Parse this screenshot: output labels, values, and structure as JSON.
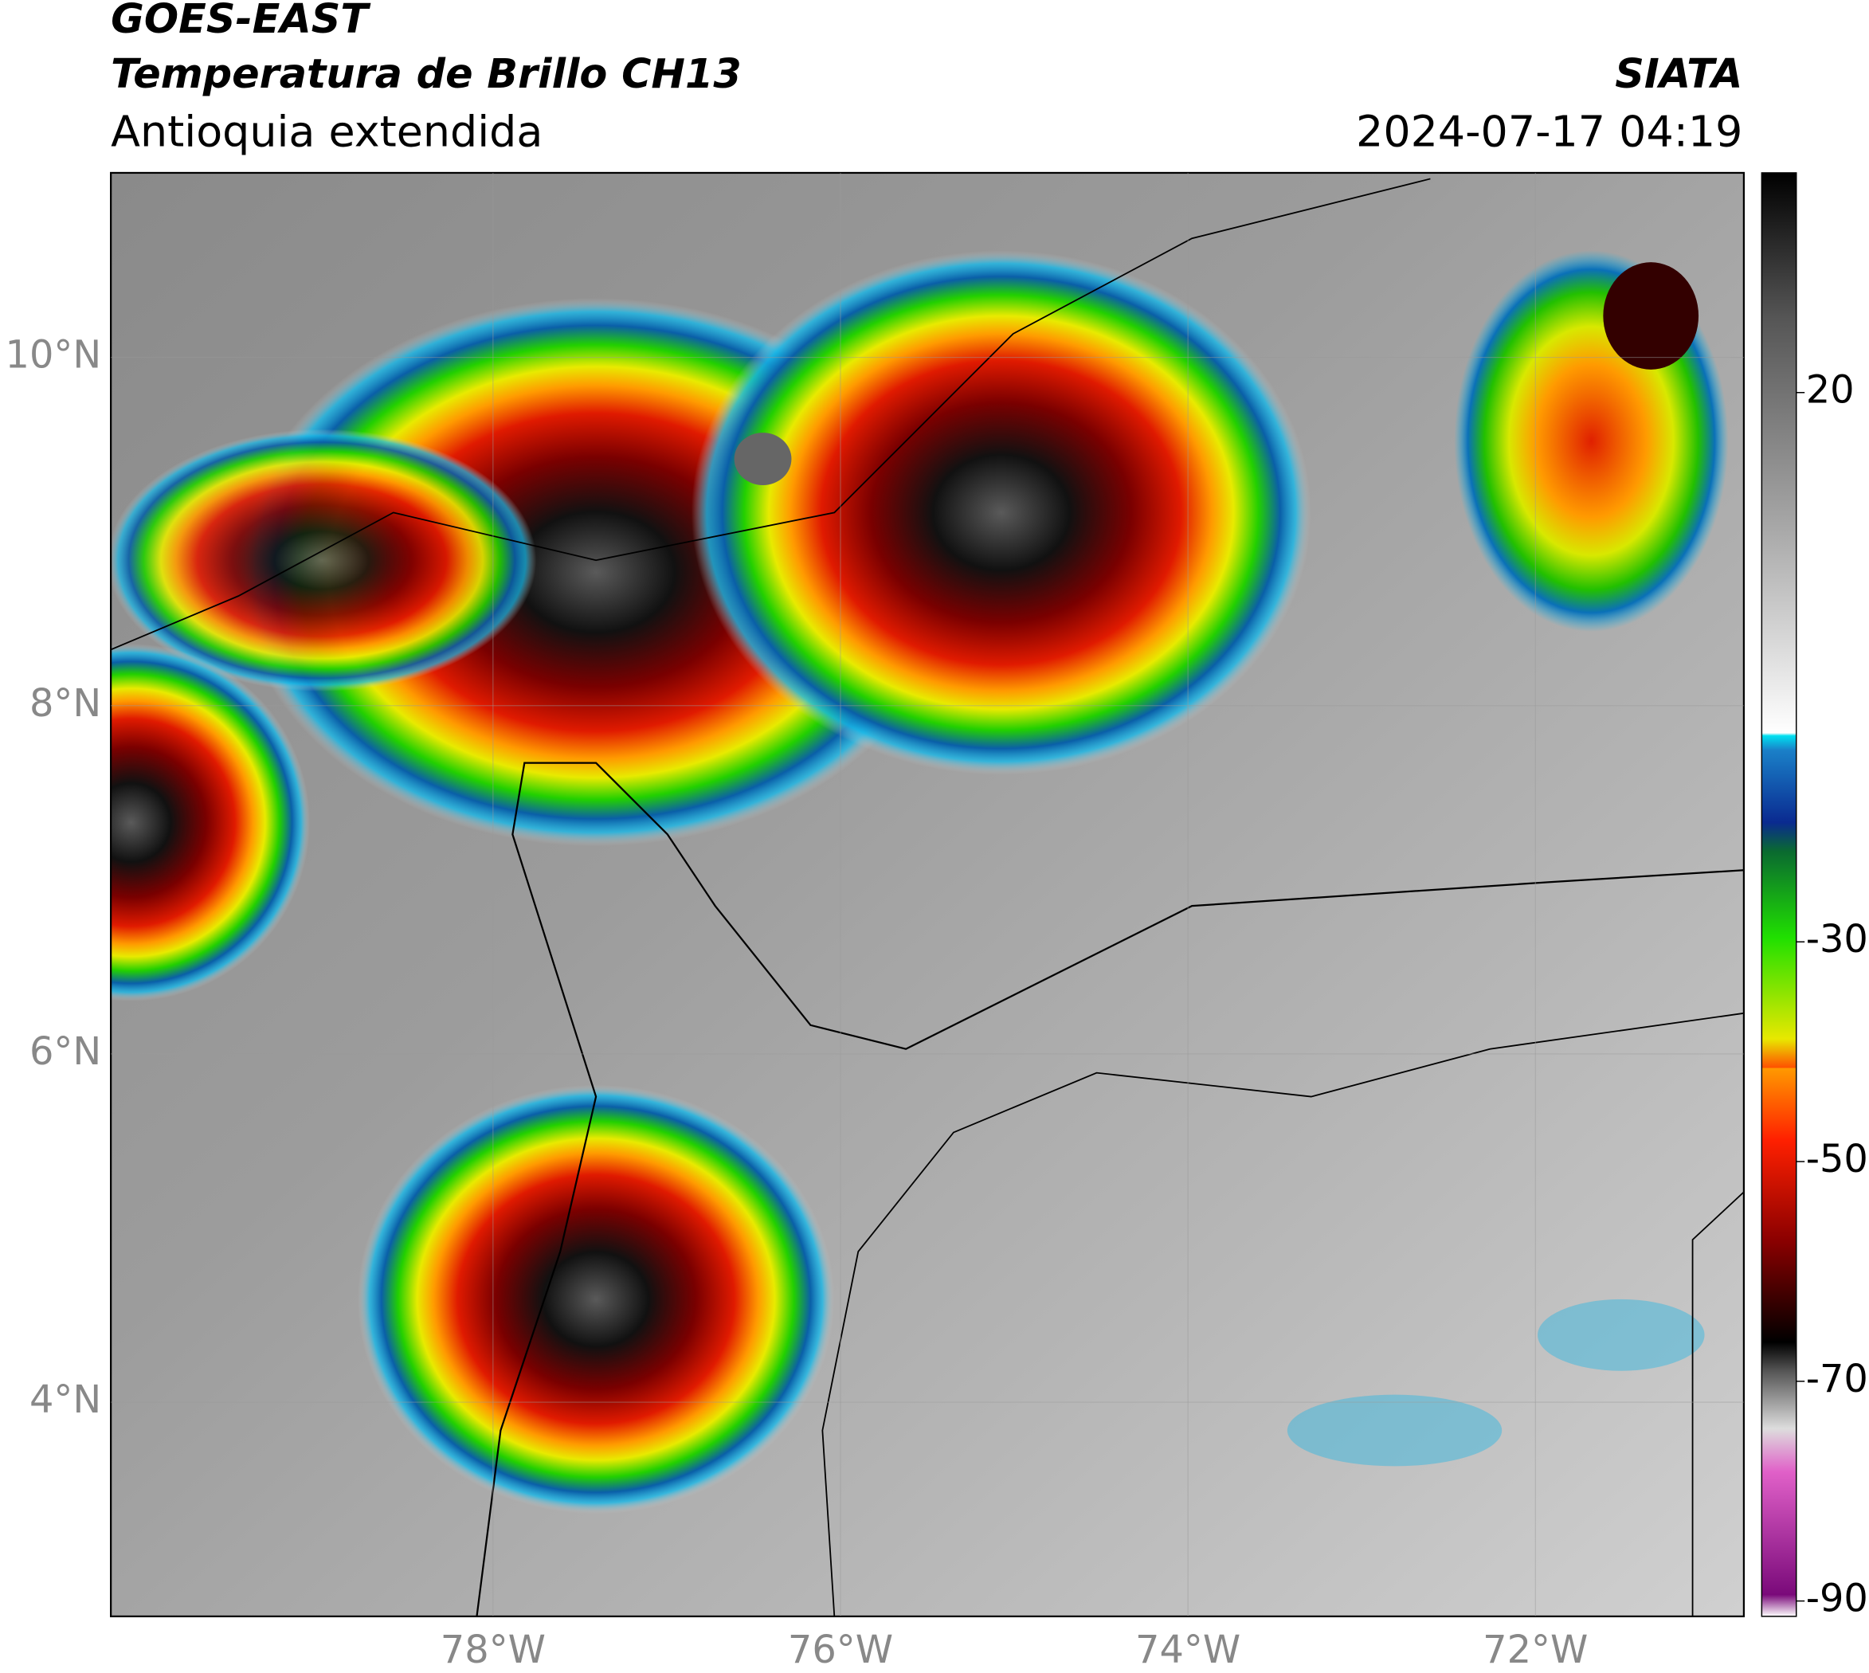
{
  "header": {
    "title": "GOES-EAST",
    "product": "Temperatura de Brillo CH13",
    "region": "Antioquia extendida",
    "agency": "SIATA",
    "datetime": "2024-07-17 04:19"
  },
  "map": {
    "lon_range": [
      -80.2,
      -70.8
    ],
    "lat_range": [
      2.77,
      11.06
    ],
    "lat_ticks": [
      {
        "value": 10,
        "label": "10°N"
      },
      {
        "value": 8,
        "label": "8°N"
      },
      {
        "value": 6,
        "label": "6°N"
      },
      {
        "value": 4,
        "label": "4°N"
      }
    ],
    "lon_ticks": [
      {
        "value": -78,
        "label": "78°W"
      },
      {
        "value": -76,
        "label": "76°W"
      },
      {
        "value": -74,
        "label": "74°W"
      },
      {
        "value": -72,
        "label": "72°W"
      }
    ]
  },
  "colorbar": {
    "range": [
      -91.4,
      40
    ],
    "ticks": [
      20,
      -30,
      -50,
      -70,
      -90
    ]
  }
}
